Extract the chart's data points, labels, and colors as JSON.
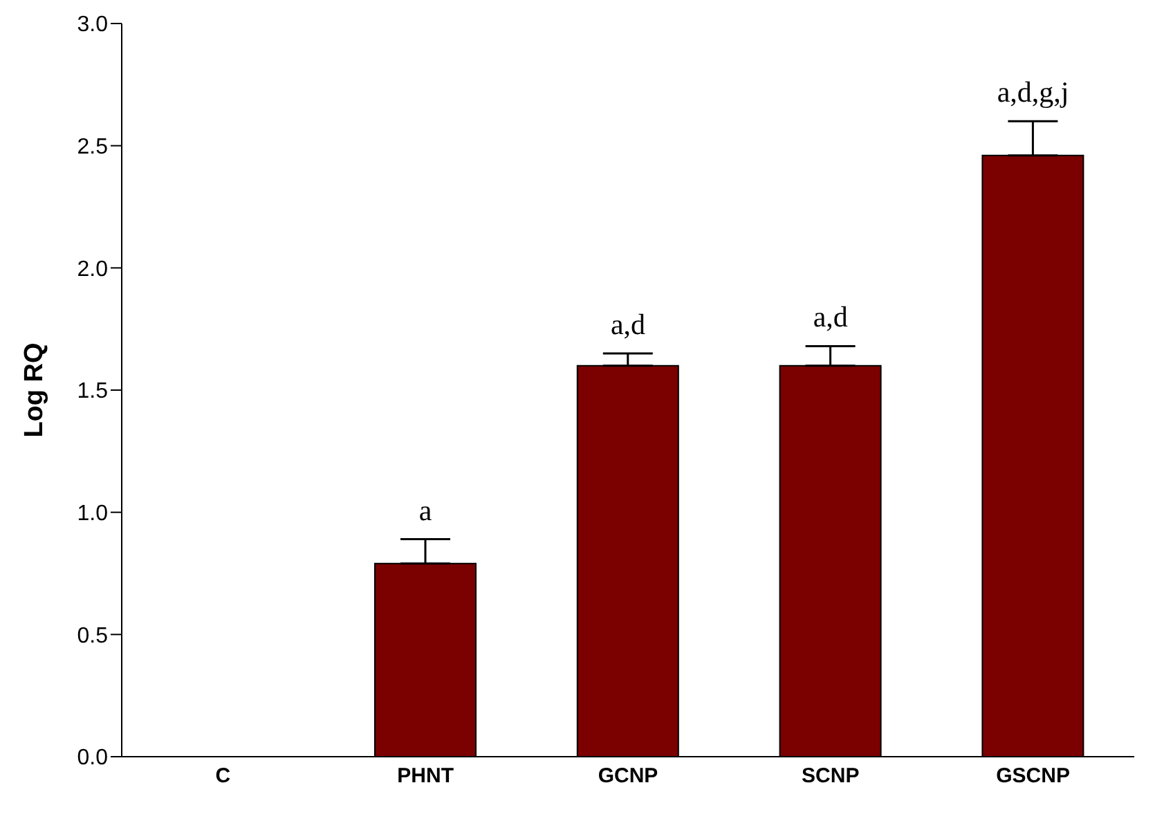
{
  "chart_data": {
    "type": "bar",
    "ylabel": "Log RQ",
    "categories": [
      "C",
      "PHNT",
      "GCNP",
      "SCNP",
      "GSCNP"
    ],
    "values": [
      0,
      0.79,
      1.6,
      1.6,
      2.46
    ],
    "errors": [
      null,
      [
        0.79,
        0.89
      ],
      [
        1.6,
        1.65
      ],
      [
        1.6,
        1.68
      ],
      [
        2.46,
        2.6
      ]
    ],
    "color": "#7b0000",
    "ylim": [
      0,
      3
    ],
    "yticks": [
      {
        "value": 0,
        "label": "0.0"
      },
      0.5,
      {
        "value": 1,
        "label": "1.0"
      },
      1.5,
      {
        "value": 2,
        "label": "2.0"
      },
      2.5,
      {
        "value": 3,
        "label": "3.0"
      }
    ],
    "grid": false,
    "annotations": [
      {
        "text": "a",
        "x": "PHNT",
        "y": 0.89
      },
      {
        "text": "a,d",
        "x": "GCNP",
        "y": 1.65
      },
      {
        "text": "a,d",
        "x": "SCNP",
        "y": 1.68
      },
      {
        "text": "a,d,g,j",
        "x": "GSCNP",
        "y": 2.6
      }
    ]
  }
}
